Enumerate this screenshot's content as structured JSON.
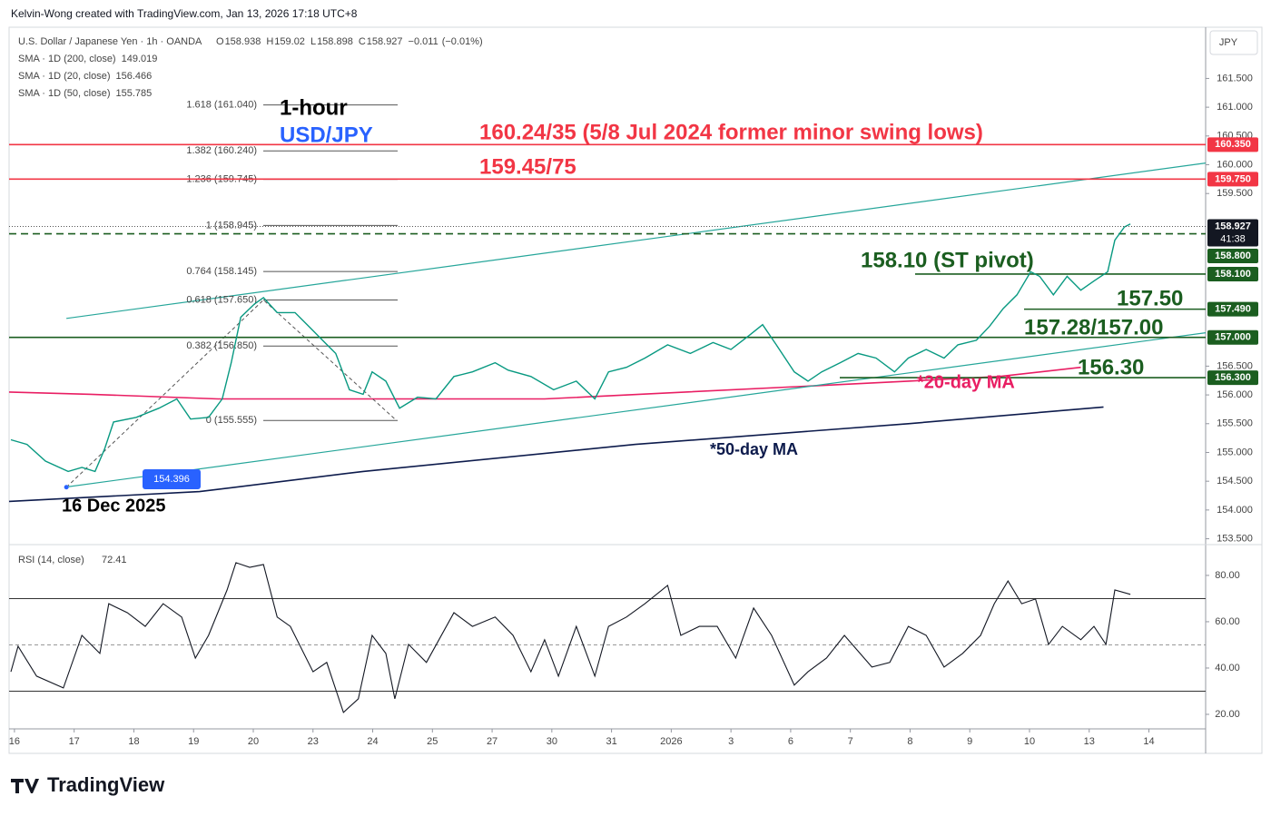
{
  "header": {
    "credit": "Kelvin-Wong created with TradingView.com, Jan 13, 2026 17:18 UTC+8"
  },
  "footer": {
    "brand": "TradingView"
  },
  "chart_data": [
    {
      "type": "line",
      "symbol": "U.S. Dollar / Japanese Yen · 1h · OANDA",
      "ohlc": [
        {
          "name": "O",
          "value": 158.938
        },
        {
          "name": "H",
          "value": 159.02
        },
        {
          "name": "L",
          "value": 158.898
        },
        {
          "name": "C",
          "value": 158.927
        }
      ],
      "change": {
        "value": -0.011,
        "label": "−0.011"
      },
      "change_pct": {
        "value": -0.01,
        "label": "(−0.01%)"
      },
      "currency": "JPY",
      "countdown": "41:38",
      "last": {
        "value": 158.927,
        "color": "#131722"
      },
      "indicators": [
        {
          "name": "SMA · 1D (200, close)",
          "value": 149.019,
          "color": "#f7a600"
        },
        {
          "name": "SMA · 1D (20, close)",
          "value": 156.466,
          "color": "#e91e63",
          "x": [
            -0.09,
            1.28,
            3.41,
            8.88,
            13.44,
            14.97,
            16.49,
            17.86
          ],
          "values": [
            156.05,
            156.01,
            155.93,
            155.93,
            156.16,
            156.24,
            156.32,
            156.48
          ]
        },
        {
          "name": "SMA · 1D (50, close)",
          "value": 155.785,
          "color": "#0d1b4c",
          "x": [
            -0.09,
            3.1,
            5.84,
            10.4,
            14.97,
            18.24
          ],
          "values": [
            154.15,
            154.32,
            154.67,
            155.14,
            155.5,
            155.79
          ]
        }
      ],
      "x": [
        -0.06,
        0.21,
        0.52,
        0.9,
        1.13,
        1.35,
        1.51,
        1.66,
        2.04,
        2.42,
        2.72,
        2.95,
        3.25,
        3.48,
        3.63,
        3.79,
        4.02,
        4.17,
        4.4,
        4.7,
        4.93,
        5.16,
        5.38,
        5.61,
        5.84,
        5.99,
        6.22,
        6.45,
        6.75,
        7.06,
        7.36,
        7.67,
        8.05,
        8.27,
        8.65,
        9.03,
        9.41,
        9.72,
        9.95,
        10.25,
        10.56,
        10.94,
        11.32,
        11.7,
        12.0,
        12.3,
        12.53,
        12.76,
        13.06,
        13.29,
        13.52,
        13.83,
        14.13,
        14.43,
        14.74,
        14.97,
        15.27,
        15.57,
        15.8,
        16.11,
        16.33,
        16.56,
        16.79,
        17.02,
        17.17,
        17.4,
        17.63,
        17.86,
        18.08,
        18.31,
        18.43,
        18.59,
        18.69
      ],
      "series": [
        {
          "color": "#089981",
          "values": [
            155.22,
            155.14,
            154.85,
            154.67,
            154.74,
            154.67,
            155.06,
            155.53,
            155.61,
            155.77,
            155.93,
            155.58,
            155.61,
            155.93,
            156.56,
            157.35,
            157.58,
            157.69,
            157.43,
            157.43,
            157.19,
            156.95,
            156.72,
            156.09,
            156.01,
            156.4,
            156.24,
            155.77,
            155.96,
            155.93,
            156.32,
            156.4,
            156.56,
            156.43,
            156.32,
            156.09,
            156.24,
            155.93,
            156.4,
            156.48,
            156.64,
            156.87,
            156.72,
            156.91,
            156.79,
            157.03,
            157.22,
            156.87,
            156.4,
            156.24,
            156.4,
            156.56,
            156.72,
            156.64,
            156.4,
            156.64,
            156.79,
            156.64,
            156.87,
            156.95,
            157.19,
            157.5,
            157.74,
            158.14,
            158.06,
            157.74,
            158.06,
            157.82,
            157.98,
            158.14,
            158.69,
            158.92,
            158.97
          ]
        }
      ],
      "xlim": [
        -0.09,
        19.95
      ],
      "ylim": [
        153.43,
        162.39
      ],
      "yticks": [
        {
          "value": 153.5,
          "label": "153.500"
        },
        {
          "value": 154,
          "label": "154.000"
        },
        {
          "value": 154.5,
          "label": "154.500"
        },
        {
          "value": 155,
          "label": "155.000"
        },
        {
          "value": 155.5,
          "label": "155.500"
        },
        {
          "value": 156,
          "label": "156.000"
        },
        {
          "value": 156.5,
          "label": "156.500"
        },
        {
          "value": 159.5,
          "label": "159.500"
        },
        {
          "value": 160,
          "label": "160.000"
        },
        {
          "value": 160.5,
          "label": "160.500"
        },
        {
          "value": 161,
          "label": "161.000"
        },
        {
          "value": 161.5,
          "label": "161.500"
        }
      ],
      "grid": false,
      "levels": [
        {
          "value": 160.35,
          "label": "160.350",
          "color": "#f23645"
        },
        {
          "value": 159.75,
          "label": "159.750",
          "color": "#f23645"
        },
        {
          "value": 158.8,
          "label": "158.800",
          "color": "#1b5e20",
          "dashed": true
        },
        {
          "value": 158.1,
          "label": "158.100",
          "color": "#1b5e20"
        },
        {
          "value": 157.49,
          "label": "157.490",
          "color": "#1b5e20"
        },
        {
          "value": 157,
          "label": "157.000",
          "color": "#1b5e20"
        },
        {
          "value": 156.3,
          "label": "156.300",
          "color": "#1b5e20"
        }
      ],
      "fib_levels": [
        {
          "value": 161.04,
          "label": "1.618 (161.040)"
        },
        {
          "value": 160.24,
          "label": "1.382 (160.240)"
        },
        {
          "value": 159.745,
          "label": "1.236 (159.745)"
        },
        {
          "value": 158.945,
          "label": "1 (158.945)"
        },
        {
          "value": 158.145,
          "label": "0.764 (158.145)"
        },
        {
          "value": 157.65,
          "label": "0.618 (157.650)"
        },
        {
          "value": 156.85,
          "label": "0.382 (156.850)"
        },
        {
          "value": 155.555,
          "label": "0 (155.555)"
        }
      ],
      "fib_path": {
        "x": [
          0.87,
          4.17,
          6.4
        ],
        "values": [
          154.396,
          157.65,
          155.555
        ]
      },
      "trendlines": [
        {
          "x": [
            0.87,
            19.95
          ],
          "values": [
            157.33,
            160.03
          ],
          "color": "#26a69a"
        },
        {
          "x": [
            0.87,
            19.95
          ],
          "values": [
            154.4,
            157.08
          ],
          "color": "#26a69a"
        }
      ],
      "swing_low": {
        "x": 0.87,
        "value": 154.396,
        "color": "#2962ff"
      },
      "annotations": [
        {
          "text": "1-hour",
          "color": "#000000"
        },
        {
          "text": "USD/JPY",
          "color": "#2962ff"
        },
        {
          "text": "160.24/35 (5/8 Jul 2024 former minor swing lows)",
          "color": "#f23645"
        },
        {
          "text": "159.45/75",
          "color": "#f23645"
        },
        {
          "text": "158.10 (ST pivot)",
          "color": "#1b5e20"
        },
        {
          "text": "157.50",
          "color": "#1b5e20"
        },
        {
          "text": "157.28/157.00",
          "color": "#1b5e20"
        },
        {
          "text": "156.30",
          "color": "#1b5e20"
        },
        {
          "text": "*20-day MA",
          "color": "#e91e63"
        },
        {
          "text": "*50-day MA",
          "color": "#0d1b4c"
        },
        {
          "text": "16 Dec 2025",
          "color": "#000000"
        }
      ]
    },
    {
      "type": "line",
      "title": "RSI (14, close)",
      "last": 72.41,
      "color": "#131722",
      "x": [
        -0.06,
        0.06,
        0.37,
        0.82,
        1.13,
        1.43,
        1.58,
        1.89,
        2.19,
        2.49,
        2.8,
        3.03,
        3.25,
        3.56,
        3.71,
        3.94,
        4.17,
        4.4,
        4.62,
        5.0,
        5.23,
        5.51,
        5.76,
        5.99,
        6.22,
        6.37,
        6.6,
        6.9,
        7.36,
        7.67,
        8.05,
        8.35,
        8.65,
        8.88,
        9.11,
        9.41,
        9.72,
        9.95,
        10.25,
        10.56,
        10.94,
        11.16,
        11.47,
        11.77,
        12.08,
        12.38,
        12.68,
        13.06,
        13.29,
        13.6,
        13.9,
        14.36,
        14.66,
        14.97,
        15.27,
        15.57,
        15.88,
        16.18,
        16.41,
        16.64,
        16.87,
        17.1,
        17.32,
        17.55,
        17.86,
        18.08,
        18.28,
        18.43,
        18.69
      ],
      "values": [
        38.4,
        49.4,
        36.5,
        31.4,
        54.1,
        46.3,
        67.8,
        63.9,
        58.0,
        67.8,
        62.0,
        44.3,
        54.1,
        73.7,
        85.5,
        83.5,
        84.7,
        62.0,
        58.0,
        38.4,
        42.4,
        20.8,
        26.7,
        54.1,
        46.3,
        26.7,
        50.2,
        42.4,
        63.9,
        58.0,
        62.0,
        54.1,
        38.4,
        52.2,
        36.5,
        58.0,
        36.5,
        58.0,
        62.0,
        67.8,
        75.7,
        54.1,
        58.0,
        58.0,
        44.3,
        65.9,
        54.1,
        32.6,
        38.4,
        44.3,
        54.1,
        40.4,
        42.4,
        58.0,
        54.1,
        40.4,
        46.3,
        54.1,
        67.8,
        77.6,
        67.8,
        69.8,
        50.2,
        58.0,
        52.2,
        58.0,
        50.2,
        73.7,
        71.8
      ],
      "xlim": [
        -0.09,
        19.95
      ],
      "ylim": [
        14.9,
        93.3
      ],
      "yticks": [
        {
          "value": 20,
          "label": "20.00"
        },
        {
          "value": 40,
          "label": "40.00"
        },
        {
          "value": 60,
          "label": "60.00"
        },
        {
          "value": 80,
          "label": "80.00"
        }
      ],
      "levels": [
        30,
        50,
        70
      ],
      "xticks": [
        {
          "value": 0,
          "label": "16"
        },
        {
          "value": 1,
          "label": "17"
        },
        {
          "value": 2,
          "label": "18"
        },
        {
          "value": 3,
          "label": "19"
        },
        {
          "value": 4,
          "label": "20"
        },
        {
          "value": 5,
          "label": "23"
        },
        {
          "value": 6,
          "label": "24"
        },
        {
          "value": 7,
          "label": "25"
        },
        {
          "value": 8,
          "label": "27"
        },
        {
          "value": 9,
          "label": "30"
        },
        {
          "value": 10,
          "label": "31"
        },
        {
          "value": 11,
          "label": "2026"
        },
        {
          "value": 12,
          "label": "3"
        },
        {
          "value": 13,
          "label": "6"
        },
        {
          "value": 14,
          "label": "7"
        },
        {
          "value": 15,
          "label": "8"
        },
        {
          "value": 16,
          "label": "9"
        },
        {
          "value": 17,
          "label": "10"
        },
        {
          "value": 18,
          "label": "13"
        },
        {
          "value": 19,
          "label": "14"
        }
      ]
    }
  ]
}
